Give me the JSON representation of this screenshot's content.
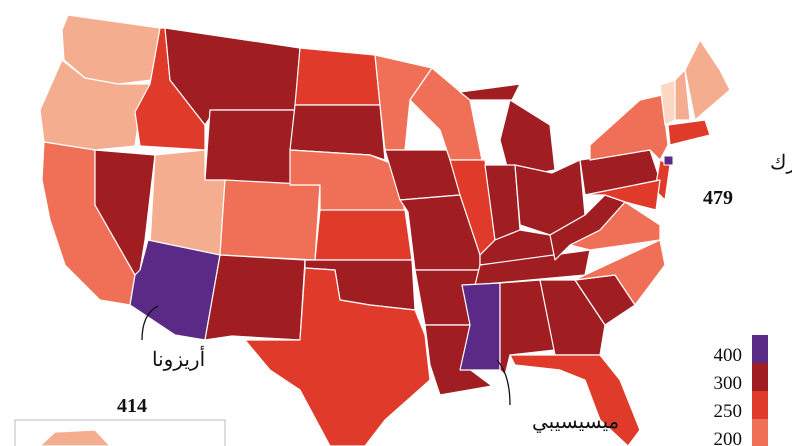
{
  "annotations": [
    {
      "label": "نيويورك",
      "value": 479
    },
    {
      "label": "أريزونا",
      "value": 414
    },
    {
      "label": "ميسيسيبي"
    }
  ],
  "legend": {
    "ticks": [
      400,
      300,
      250,
      200
    ],
    "colors": [
      "#5b2a86",
      "#a01d22",
      "#e03a2a",
      "#ef7056"
    ]
  },
  "lighter_colors": [
    "#f5ad8f",
    "#fbd7c4"
  ]
}
